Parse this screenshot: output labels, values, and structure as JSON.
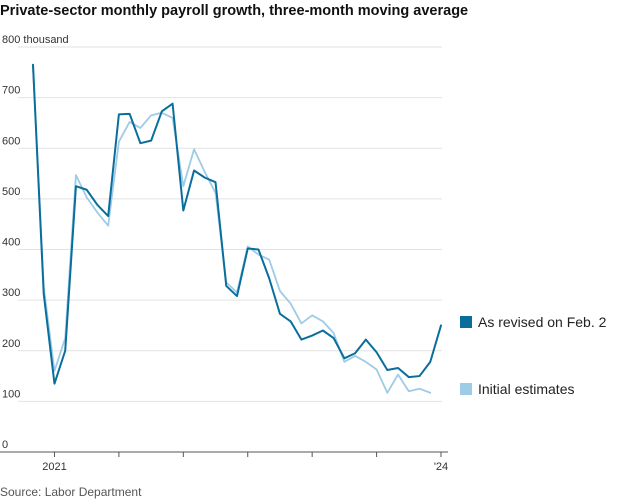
{
  "title": "Private-sector monthly payroll growth, three-month moving average",
  "source": "Source: Labor Department",
  "chart_data": {
    "type": "line",
    "title": "Private-sector monthly payroll growth, three-month moving average",
    "ylabel": "thousand",
    "ylim": [
      0,
      800
    ],
    "y_ticks": [
      0,
      100,
      200,
      300,
      400,
      500,
      600,
      700,
      800
    ],
    "y_tick_labels": [
      "0",
      "100",
      "200",
      "300",
      "400",
      "500",
      "600",
      "700",
      "800 thousand"
    ],
    "x": [
      "2020-11",
      "2020-12",
      "2021-01",
      "2021-02",
      "2021-03",
      "2021-04",
      "2021-05",
      "2021-06",
      "2021-07",
      "2021-08",
      "2021-09",
      "2021-10",
      "2021-11",
      "2021-12",
      "2022-01",
      "2022-02",
      "2022-03",
      "2022-04",
      "2022-05",
      "2022-06",
      "2022-07",
      "2022-08",
      "2022-09",
      "2022-10",
      "2022-11",
      "2022-12",
      "2023-01",
      "2023-02",
      "2023-03",
      "2023-04",
      "2023-05",
      "2023-06",
      "2023-07",
      "2023-08",
      "2023-09",
      "2023-10",
      "2023-11",
      "2023-12",
      "2024-01"
    ],
    "x_tick_labels": [
      "2021",
      "'24"
    ],
    "grid": true,
    "legend": "right",
    "series": [
      {
        "name": "As revised on Feb. 2",
        "color": "#0a6e9c",
        "values": [
          765,
          312,
          135,
          200,
          525,
          518,
          488,
          466,
          667,
          668,
          610,
          615,
          673,
          688,
          477,
          556,
          542,
          533,
          328,
          308,
          402,
          400,
          343,
          273,
          258,
          222,
          230,
          240,
          225,
          185,
          195,
          222,
          197,
          162,
          166,
          148,
          150,
          178,
          250
        ]
      },
      {
        "name": "Initial estimates",
        "color": "#9ecbe6",
        "values": [
          762,
          326,
          160,
          225,
          547,
          503,
          473,
          447,
          613,
          652,
          640,
          665,
          670,
          660,
          525,
          598,
          553,
          512,
          335,
          315,
          406,
          390,
          380,
          318,
          293,
          254,
          270,
          258,
          235,
          178,
          190,
          178,
          163,
          117,
          153,
          120,
          125,
          117,
          null
        ]
      }
    ]
  }
}
